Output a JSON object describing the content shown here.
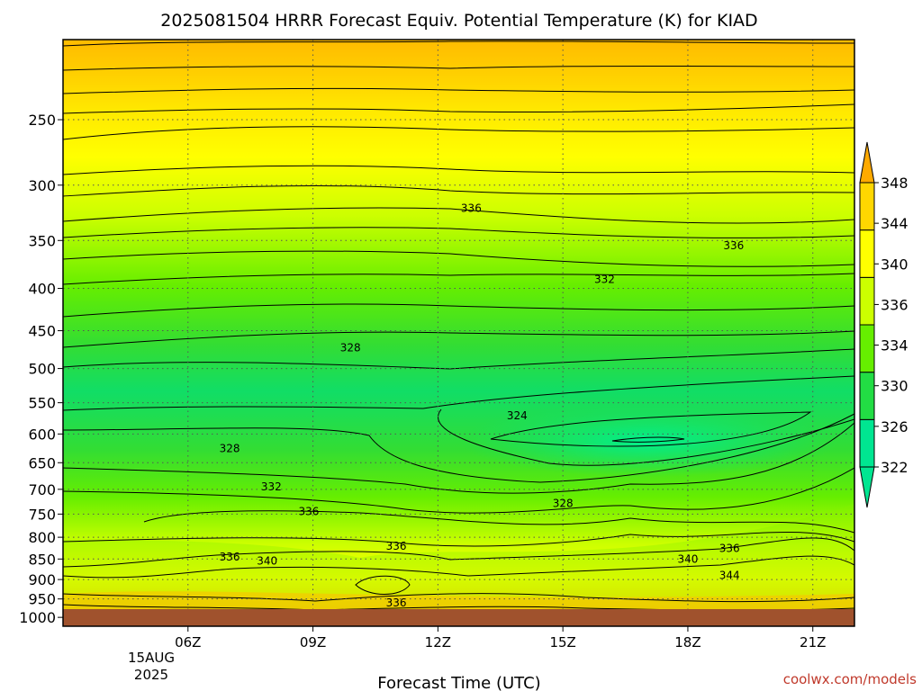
{
  "chart_data": {
    "type": "contour",
    "title": "2025081504 HRRR Forecast Equiv. Potential Temperature (K) for KIAD",
    "xlabel": "Forecast Time (UTC)",
    "ylabel": "",
    "x_ticks": [
      "06Z",
      "09Z",
      "12Z",
      "15Z",
      "18Z",
      "21Z"
    ],
    "x_hours": [
      6,
      9,
      12,
      15,
      18,
      21
    ],
    "x_range_hours": [
      3,
      22
    ],
    "date_label": [
      "15AUG",
      "2025"
    ],
    "y_scale": "log-pressure",
    "y_ticks": [
      250,
      300,
      350,
      400,
      450,
      500,
      550,
      600,
      650,
      700,
      750,
      800,
      850,
      900,
      950,
      1000
    ],
    "y_range": [
      200,
      1025
    ],
    "grid": true,
    "colorbar": {
      "ticks": [
        322,
        326,
        330,
        334,
        336,
        340,
        344,
        348
      ],
      "colors": [
        "#00e691",
        "#22dd44",
        "#66ee00",
        "#ccff00",
        "#ffff00",
        "#ffd700",
        "#ffaa00"
      ]
    },
    "contour_labels": [
      {
        "value": "336",
        "hour": 12.8,
        "p": 320
      },
      {
        "value": "336",
        "hour": 19.1,
        "p": 355
      },
      {
        "value": "332",
        "hour": 16.0,
        "p": 390
      },
      {
        "value": "328",
        "hour": 9.9,
        "p": 472
      },
      {
        "value": "324",
        "hour": 13.9,
        "p": 570
      },
      {
        "value": "328",
        "hour": 7.0,
        "p": 625
      },
      {
        "value": "332",
        "hour": 8.0,
        "p": 695
      },
      {
        "value": "336",
        "hour": 8.9,
        "p": 745
      },
      {
        "value": "328",
        "hour": 15.0,
        "p": 728
      },
      {
        "value": "336",
        "hour": 11.0,
        "p": 820
      },
      {
        "value": "336",
        "hour": 7.0,
        "p": 845
      },
      {
        "value": "340",
        "hour": 7.9,
        "p": 855
      },
      {
        "value": "340",
        "hour": 18.0,
        "p": 850
      },
      {
        "value": "336",
        "hour": 19.0,
        "p": 825
      },
      {
        "value": "344",
        "hour": 19.0,
        "p": 890
      },
      {
        "value": "336",
        "hour": 11.0,
        "p": 960
      }
    ],
    "surface_color": "#a0522d"
  },
  "footer": {
    "credit": "coolwx.com/models"
  }
}
